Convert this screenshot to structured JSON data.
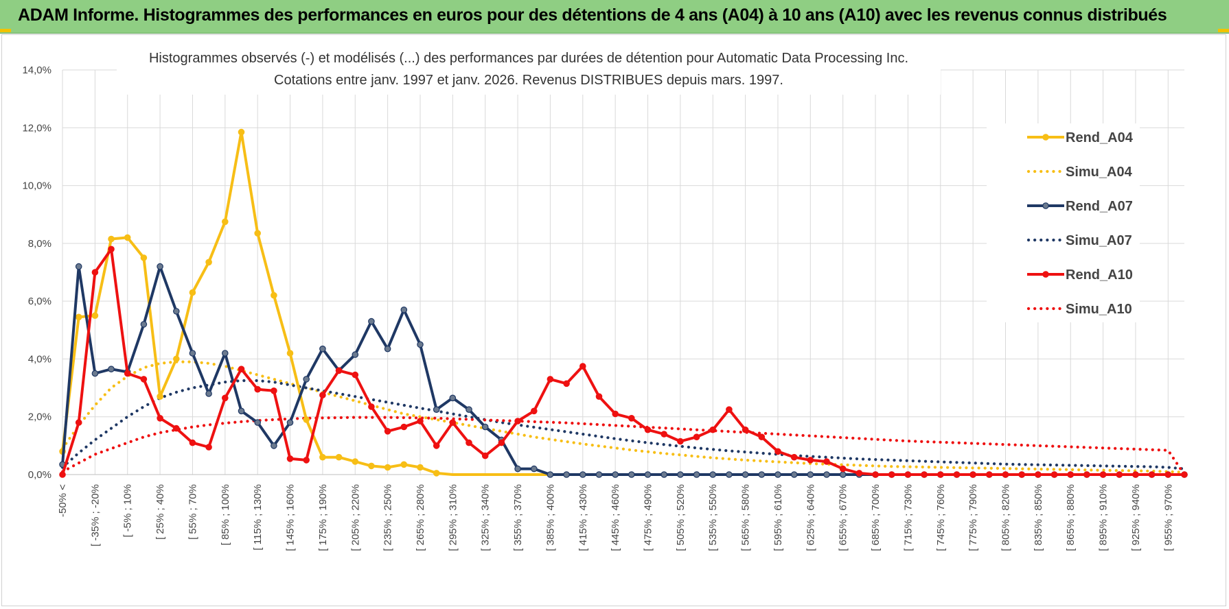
{
  "header": {
    "title": "ADAM Informe. Histogrammes des performances en euros pour des détentions de 4 ans (A04) à 10 ans (A10) avec les revenus connus distribués"
  },
  "colors": {
    "banner": "#8fce83",
    "A04": "#f7be16",
    "A07": "#1f3864",
    "A10": "#ee1111",
    "grid": "#d9d9d9"
  },
  "chart_data": {
    "type": "line",
    "title": "Histogrammes observés (-) et modélisés (...) des performances par durées de détention pour Automatic Data Processing Inc.",
    "subtitle": "Cotations entre janv. 1997 et janv. 2026. Revenus DISTRIBUES depuis mars. 1997.",
    "xlabel": "",
    "ylabel": "",
    "ylim": [
      0,
      14
    ],
    "y_ticks": [
      "0,0%",
      "2,0%",
      "4,0%",
      "6,0%",
      "8,0%",
      "10,0%",
      "12,0%",
      "14,0%"
    ],
    "grid": true,
    "legend_position": "right",
    "x_tick_labels": [
      "-50% <",
      "[ -35% ; -20%",
      "[ -5% ; 10%",
      "[ 25% ; 40%",
      "[ 55% ; 70%",
      "[ 85% ; 100%",
      "[ 115% ; 130%",
      "[ 145% ; 160%",
      "[ 175% ; 190%",
      "[ 205% ; 220%",
      "[ 235% ; 250%",
      "[ 265% ; 280%",
      "[ 295% ; 310%",
      "[ 325% ; 340%",
      "[ 355% ; 370%",
      "[ 385% ; 400%",
      "[ 415% ; 430%",
      "[ 445% ; 460%",
      "[ 475% ; 490%",
      "[ 505% ; 520%",
      "[ 535% ; 550%",
      "[ 565% ; 580%",
      "[ 595% ; 610%",
      "[ 625% ; 640%",
      "[ 655% ; 670%",
      "[ 685% ; 700%",
      "[ 715% ; 730%",
      "[ 745% ; 760%",
      "[ 775% ; 790%",
      "[ 805% ; 820%",
      "[ 835% ; 850%",
      "[ 865% ; 880%",
      "[ 895% ; 910%",
      "[ 925% ; 940%",
      "[ 955% ; 970%"
    ],
    "n_bins": 70,
    "series": [
      {
        "name": "Rend_A04",
        "key": "A04",
        "style": "solid",
        "values": [
          0.8,
          5.45,
          5.5,
          8.15,
          8.2,
          7.5,
          2.7,
          4.0,
          6.3,
          7.35,
          8.75,
          11.85,
          8.35,
          6.2,
          4.2,
          1.9,
          0.6,
          0.6,
          0.45,
          0.3,
          0.25,
          0.35,
          0.25,
          0.05,
          0.0,
          0.0,
          0.0,
          0.0,
          0.0,
          0.0,
          0.0,
          0.0,
          0.0,
          0.0,
          0.0,
          0.0,
          0.0,
          0.0,
          0.0,
          0.0,
          0.0,
          0.0,
          0.0,
          0.0,
          0.0,
          0.0,
          0.0,
          0.0,
          0.0,
          0.0,
          0.0,
          0.0,
          0.0,
          0.0,
          0.0,
          0.0,
          0.0,
          0.0,
          0.0,
          0.0,
          0.0,
          0.0,
          0.0,
          0.0,
          0.0,
          0.0,
          0.0,
          0.0,
          0.0,
          0.0
        ]
      },
      {
        "name": "Simu_A04",
        "key": "A04",
        "style": "dotted",
        "values": [
          0.9,
          1.7,
          2.4,
          3.0,
          3.4,
          3.7,
          3.85,
          3.9,
          3.9,
          3.85,
          3.75,
          3.6,
          3.45,
          3.3,
          3.15,
          3.0,
          2.85,
          2.7,
          2.55,
          2.4,
          2.25,
          2.1,
          2.0,
          1.9,
          1.8,
          1.7,
          1.6,
          1.5,
          1.4,
          1.3,
          1.22,
          1.14,
          1.06,
          0.99,
          0.92,
          0.85,
          0.79,
          0.73,
          0.68,
          0.63,
          0.58,
          0.54,
          0.5,
          0.47,
          0.44,
          0.41,
          0.38,
          0.36,
          0.34,
          0.32,
          0.3,
          0.28,
          0.27,
          0.26,
          0.25,
          0.24,
          0.23,
          0.22,
          0.21,
          0.2,
          0.19,
          0.18,
          0.17,
          0.16,
          0.15,
          0.14,
          0.13,
          0.12,
          0.1,
          0.08
        ]
      },
      {
        "name": "Rend_A07",
        "key": "A07",
        "style": "solid",
        "values": [
          0.35,
          7.2,
          3.5,
          3.65,
          3.55,
          5.2,
          7.2,
          5.65,
          4.2,
          2.8,
          4.2,
          2.2,
          1.8,
          1.0,
          1.8,
          3.3,
          4.35,
          3.6,
          4.15,
          5.3,
          4.35,
          5.7,
          4.5,
          2.25,
          2.65,
          2.25,
          1.65,
          1.2,
          0.2,
          0.2,
          0.0,
          0.0,
          0.0,
          0.0,
          0.0,
          0.0,
          0.0,
          0.0,
          0.0,
          0.0,
          0.0,
          0.0,
          0.0,
          0.0,
          0.0,
          0.0,
          0.0,
          0.0,
          0.0,
          0.0,
          0.0,
          0.0,
          0.0,
          0.0,
          0.0,
          0.0,
          0.0,
          0.0,
          0.0,
          0.0,
          0.0,
          0.0,
          0.0,
          0.0,
          0.0,
          0.0,
          0.0,
          0.0,
          0.0,
          0.0
        ]
      },
      {
        "name": "Simu_A07",
        "key": "A07",
        "style": "dotted",
        "values": [
          0.25,
          0.75,
          1.2,
          1.6,
          2.0,
          2.35,
          2.65,
          2.85,
          3.0,
          3.1,
          3.2,
          3.25,
          3.25,
          3.2,
          3.1,
          3.0,
          2.9,
          2.8,
          2.7,
          2.6,
          2.5,
          2.4,
          2.3,
          2.2,
          2.1,
          2.0,
          1.9,
          1.8,
          1.72,
          1.64,
          1.56,
          1.48,
          1.4,
          1.32,
          1.24,
          1.17,
          1.1,
          1.04,
          0.98,
          0.92,
          0.87,
          0.82,
          0.78,
          0.74,
          0.7,
          0.66,
          0.63,
          0.6,
          0.57,
          0.54,
          0.52,
          0.5,
          0.48,
          0.46,
          0.44,
          0.42,
          0.4,
          0.38,
          0.36,
          0.35,
          0.34,
          0.33,
          0.32,
          0.31,
          0.3,
          0.29,
          0.28,
          0.27,
          0.25,
          0.2
        ]
      },
      {
        "name": "Rend_A10",
        "key": "A10",
        "style": "solid",
        "values": [
          0.0,
          1.8,
          7.0,
          7.8,
          3.5,
          3.3,
          1.95,
          1.6,
          1.1,
          0.95,
          2.65,
          3.65,
          2.95,
          2.9,
          0.55,
          0.5,
          2.75,
          3.6,
          3.45,
          2.35,
          1.5,
          1.65,
          1.85,
          1.0,
          1.8,
          1.1,
          0.65,
          1.1,
          1.85,
          2.2,
          3.3,
          3.15,
          3.75,
          2.7,
          2.1,
          1.95,
          1.55,
          1.4,
          1.15,
          1.3,
          1.55,
          2.25,
          1.55,
          1.3,
          0.8,
          0.6,
          0.5,
          0.45,
          0.2,
          0.05,
          0.0,
          0.0,
          0.0,
          0.0,
          0.0,
          0.0,
          0.0,
          0.0,
          0.0,
          0.0,
          0.0,
          0.0,
          0.0,
          0.0,
          0.0,
          0.0,
          0.0,
          0.0,
          0.0,
          0.0
        ]
      },
      {
        "name": "Simu_A10",
        "key": "A10",
        "style": "dotted",
        "values": [
          0.1,
          0.4,
          0.7,
          0.9,
          1.1,
          1.3,
          1.45,
          1.55,
          1.65,
          1.72,
          1.78,
          1.83,
          1.87,
          1.9,
          1.93,
          1.95,
          1.96,
          1.97,
          1.98,
          1.98,
          1.98,
          1.97,
          1.96,
          1.95,
          1.93,
          1.91,
          1.89,
          1.87,
          1.85,
          1.83,
          1.81,
          1.79,
          1.76,
          1.73,
          1.7,
          1.67,
          1.64,
          1.61,
          1.58,
          1.55,
          1.52,
          1.49,
          1.46,
          1.43,
          1.4,
          1.37,
          1.34,
          1.31,
          1.28,
          1.25,
          1.22,
          1.19,
          1.16,
          1.14,
          1.12,
          1.1,
          1.08,
          1.06,
          1.04,
          1.02,
          1.0,
          0.98,
          0.96,
          0.94,
          0.92,
          0.9,
          0.88,
          0.86,
          0.84,
          0.0
        ]
      }
    ]
  }
}
